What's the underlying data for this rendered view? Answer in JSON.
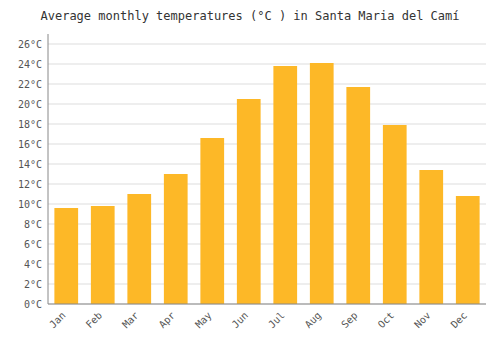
{
  "chart_data": {
    "type": "bar",
    "title": "Average monthly temperatures (°C ) in Santa Maria del Camí",
    "categories": [
      "Jan",
      "Feb",
      "Mar",
      "Apr",
      "May",
      "Jun",
      "Jul",
      "Aug",
      "Sep",
      "Oct",
      "Nov",
      "Dec"
    ],
    "values": [
      9.6,
      9.8,
      11.0,
      13.0,
      16.6,
      20.5,
      23.8,
      24.1,
      21.7,
      17.9,
      13.4,
      10.8
    ],
    "color": "#FDB827",
    "ylim": [
      0,
      27
    ],
    "yticks": [
      {
        "value": 0,
        "label": "0°C"
      },
      {
        "value": 2,
        "label": "2°C"
      },
      {
        "value": 4,
        "label": "4°C"
      },
      {
        "value": 6,
        "label": "6°C"
      },
      {
        "value": 8,
        "label": "8°C"
      },
      {
        "value": 10,
        "label": "10°C"
      },
      {
        "value": 12,
        "label": "12°C"
      },
      {
        "value": 14,
        "label": "14°C"
      },
      {
        "value": 16,
        "label": "16°C"
      },
      {
        "value": 18,
        "label": "18°C"
      },
      {
        "value": 20,
        "label": "20°C"
      },
      {
        "value": 22,
        "label": "22°C"
      },
      {
        "value": 24,
        "label": "24°C"
      },
      {
        "value": 26,
        "label": "26°C"
      }
    ],
    "grid": true
  }
}
